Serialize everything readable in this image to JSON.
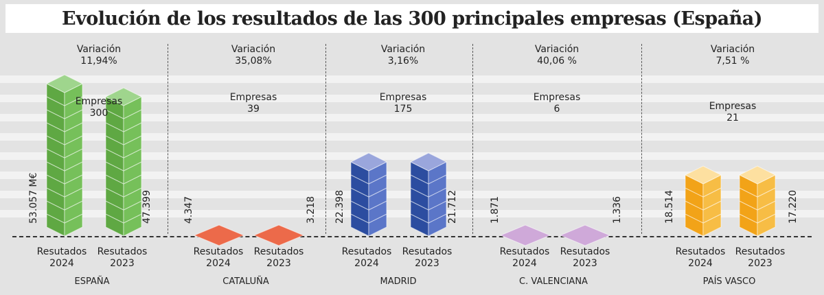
{
  "title": "Evolución de los resultados de las 300 principales empresas (España)",
  "labels": {
    "variacion": "Variación",
    "empresas": "Empresas",
    "resultados": "Resutados",
    "year_2024": "2024",
    "year_2023": "2023"
  },
  "colors": {
    "espana": {
      "top": "#9fd58d",
      "left": "#5fa843",
      "right": "#76c05a"
    },
    "cataluna": {
      "top": "#ec6a4a"
    },
    "madrid": {
      "top": "#9aa6dc",
      "left": "#2c4da0",
      "right": "#5b76c8"
    },
    "valenciana": {
      "top": "#cfa9d9"
    },
    "pais_vasco": {
      "top": "#fde0a0",
      "left": "#f2a318",
      "right": "#f7bd45"
    }
  },
  "regions": [
    {
      "name": "ESPAÑA",
      "variacion": "11,94%",
      "empresas": "300",
      "v2024": "53.057 M€",
      "v2023": "47.399"
    },
    {
      "name": "CATALUÑA",
      "variacion": "35,08%",
      "empresas": "39",
      "v2024": "4.347",
      "v2023": "3.218"
    },
    {
      "name": "MADRID",
      "variacion": "3,16%",
      "empresas": "175",
      "v2024": "22.398",
      "v2023": "21.712"
    },
    {
      "name": "C. VALENCIANA",
      "variacion": "40,06 %",
      "empresas": "6",
      "v2024": "1.871",
      "v2023": "1.336"
    },
    {
      "name": "PAÍS VASCO",
      "variacion": "7,51 %",
      "empresas": "21",
      "v2024": "18.514",
      "v2023": "17.220"
    }
  ],
  "chart_data": {
    "type": "bar",
    "title": "Evolución de los resultados de las 300 principales empresas (España)",
    "categories": [
      "ESPAÑA",
      "CATALUÑA",
      "MADRID",
      "C. VALENCIANA",
      "PAÍS VASCO"
    ],
    "units": "M€",
    "series": [
      {
        "name": "Resutados 2024",
        "values": [
          53057,
          4347,
          22398,
          1871,
          18514
        ]
      },
      {
        "name": "Resutados 2023",
        "values": [
          47399,
          3218,
          21712,
          1336,
          17220
        ]
      }
    ],
    "variacion_pct": [
      11.94,
      35.08,
      3.16,
      40.06,
      7.51
    ],
    "empresas": [
      300,
      39,
      175,
      6,
      21
    ],
    "xlabel": "",
    "ylabel": ""
  }
}
